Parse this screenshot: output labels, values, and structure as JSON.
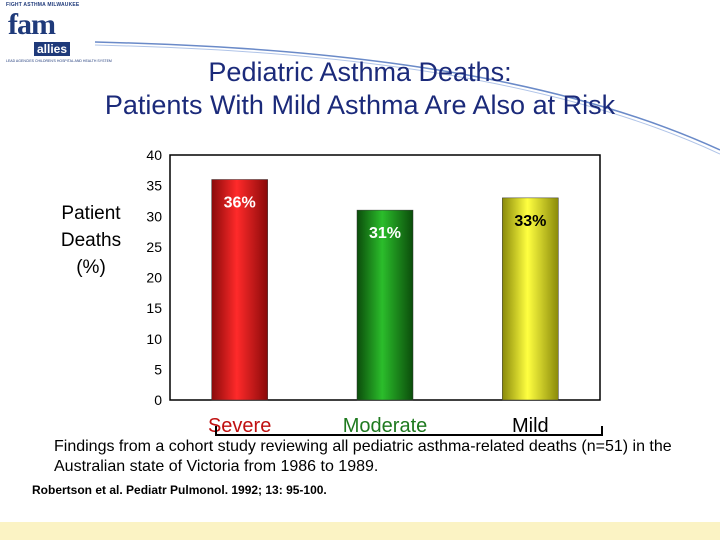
{
  "logo": {
    "top_text": "FIGHT ASTHMA MILWAUKEE",
    "main_text": "fam",
    "sub_text": "allies",
    "tagline": "LEAD AGENCIES CHILDREN'S HOSPITAL AND HEALTH SYSTEM"
  },
  "title": {
    "line1": "Pediatric Asthma Deaths:",
    "line2": "Patients With Mild Asthma Are Also at Risk"
  },
  "y_axis_label": "Patient\nDeaths\n(%)",
  "caption": "Findings from a cohort study reviewing all pediatric asthma-related deaths (n=51) in the Australian state of Victoria from 1986 to 1989.",
  "citation": "Robertson et al. Pediatr Pulmonol. 1992; 13: 95-100.",
  "colors": {
    "title": "#1b2a7a",
    "severe": "#e21b1b",
    "moderate": "#1f8a1f",
    "mild": "#e6e21e",
    "footer": "#fbf3c4"
  },
  "chart_data": {
    "type": "bar",
    "categories": [
      "Severe",
      "Moderate",
      "Mild"
    ],
    "values": [
      36,
      31,
      33
    ],
    "data_labels": [
      "36%",
      "31%",
      "33%"
    ],
    "ylabel": "Patient Deaths (%)",
    "ylim": [
      0,
      40
    ],
    "yticks": [
      0,
      5,
      10,
      15,
      20,
      25,
      30,
      35,
      40
    ],
    "grid": false,
    "legend": "none"
  }
}
